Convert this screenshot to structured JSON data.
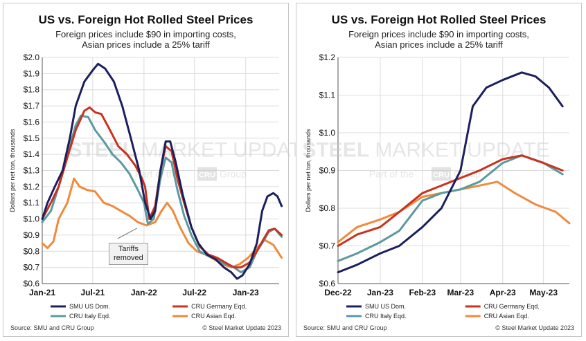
{
  "colors": {
    "smu": "#1b1f5e",
    "germany": "#c8321e",
    "italy": "#5a9aa0",
    "asia": "#f08a3c",
    "grid": "#dcdcdc"
  },
  "watermark": {
    "line1a": "STEEL",
    "line1b": "MARKET",
    "line1c": "UPDATE",
    "line2a": "Part of the",
    "logo": "CRU",
    "line2b": "Group"
  },
  "chart_data": [
    {
      "type": "line",
      "title": "US vs. Foreign Hot Rolled Steel Prices",
      "subtitle1": "Foreign prices include $90 in importing costs,",
      "subtitle2": "Asian prices include a 25% tariff",
      "ylabel": "Dollars per net ton, thousands",
      "ylim": [
        0.6,
        2.0
      ],
      "yticks": [
        "$0.6",
        "$0.7",
        "$0.8",
        "$0.9",
        "$1.0",
        "$1.1",
        "$1.2",
        "$1.3",
        "$1.4",
        "$1.5",
        "$1.6",
        "$1.7",
        "$1.8",
        "$1.9",
        "$2.0"
      ],
      "xlim": [
        "2021-01",
        "2023-05"
      ],
      "xticks": [
        {
          "label": "Jan-21",
          "x": "2021-01"
        },
        {
          "label": "Jul-21",
          "x": "2021-07"
        },
        {
          "label": "Jan-22",
          "x": "2022-01"
        },
        {
          "label": "Jul-22",
          "x": "2022-07"
        },
        {
          "label": "Jan-23",
          "x": "2023-01"
        }
      ],
      "grid": true,
      "legend_position": "bottom",
      "annotation": {
        "line1": "Tariffs",
        "line2": "removed",
        "x": "2022-01"
      },
      "source": "Source: SMU and CRU Group",
      "copyright": "© Steel Market Update 2023",
      "series": [
        {
          "name": "SMU US Dom.",
          "key": "smu",
          "points": [
            [
              "2021-01-01",
              1.0
            ],
            [
              "2021-01-20",
              1.1
            ],
            [
              "2021-02-15",
              1.2
            ],
            [
              "2021-03-15",
              1.3
            ],
            [
              "2021-04-10",
              1.5
            ],
            [
              "2021-05-01",
              1.7
            ],
            [
              "2021-06-01",
              1.85
            ],
            [
              "2021-07-01",
              1.92
            ],
            [
              "2021-07-20",
              1.96
            ],
            [
              "2021-08-15",
              1.93
            ],
            [
              "2021-09-15",
              1.85
            ],
            [
              "2021-10-15",
              1.7
            ],
            [
              "2021-11-15",
              1.5
            ],
            [
              "2021-12-15",
              1.3
            ],
            [
              "2022-01-05",
              1.1
            ],
            [
              "2022-01-25",
              1.0
            ],
            [
              "2022-02-10",
              1.05
            ],
            [
              "2022-03-01",
              1.3
            ],
            [
              "2022-03-20",
              1.48
            ],
            [
              "2022-04-05",
              1.48
            ],
            [
              "2022-04-25",
              1.35
            ],
            [
              "2022-05-20",
              1.15
            ],
            [
              "2022-06-20",
              0.95
            ],
            [
              "2022-07-15",
              0.85
            ],
            [
              "2022-08-15",
              0.78
            ],
            [
              "2022-09-15",
              0.75
            ],
            [
              "2022-10-15",
              0.7
            ],
            [
              "2022-11-10",
              0.67
            ],
            [
              "2022-12-01",
              0.63
            ],
            [
              "2022-12-20",
              0.65
            ],
            [
              "2023-01-15",
              0.72
            ],
            [
              "2023-02-10",
              0.85
            ],
            [
              "2023-03-01",
              1.05
            ],
            [
              "2023-03-20",
              1.14
            ],
            [
              "2023-04-10",
              1.16
            ],
            [
              "2023-04-25",
              1.14
            ],
            [
              "2023-05-10",
              1.08
            ]
          ]
        },
        {
          "name": "CRU Germany Eqd.",
          "key": "germany",
          "points": [
            [
              "2021-01-01",
              1.0
            ],
            [
              "2021-02-01",
              1.1
            ],
            [
              "2021-03-01",
              1.2
            ],
            [
              "2021-04-01",
              1.38
            ],
            [
              "2021-05-01",
              1.55
            ],
            [
              "2021-06-01",
              1.67
            ],
            [
              "2021-06-20",
              1.69
            ],
            [
              "2021-07-10",
              1.66
            ],
            [
              "2021-08-01",
              1.65
            ],
            [
              "2021-09-01",
              1.55
            ],
            [
              "2021-10-01",
              1.45
            ],
            [
              "2021-11-01",
              1.4
            ],
            [
              "2021-12-01",
              1.33
            ],
            [
              "2021-12-25",
              1.25
            ],
            [
              "2022-01-05",
              1.2
            ],
            [
              "2022-01-20",
              1.0
            ],
            [
              "2022-02-10",
              1.08
            ],
            [
              "2022-03-01",
              1.3
            ],
            [
              "2022-03-20",
              1.45
            ],
            [
              "2022-04-10",
              1.42
            ],
            [
              "2022-05-01",
              1.25
            ],
            [
              "2022-05-25",
              1.1
            ],
            [
              "2022-06-20",
              0.95
            ],
            [
              "2022-07-20",
              0.83
            ],
            [
              "2022-08-20",
              0.78
            ],
            [
              "2022-09-20",
              0.76
            ],
            [
              "2022-10-20",
              0.73
            ],
            [
              "2022-11-20",
              0.7
            ],
            [
              "2022-12-15",
              0.7
            ],
            [
              "2023-01-15",
              0.73
            ],
            [
              "2023-02-10",
              0.8
            ],
            [
              "2023-03-01",
              0.86
            ],
            [
              "2023-03-25",
              0.93
            ],
            [
              "2023-04-15",
              0.94
            ],
            [
              "2023-05-10",
              0.9
            ]
          ]
        },
        {
          "name": "CRU Italy Eqd.",
          "key": "italy",
          "points": [
            [
              "2021-01-01",
              0.98
            ],
            [
              "2021-02-01",
              1.05
            ],
            [
              "2021-03-01",
              1.2
            ],
            [
              "2021-04-01",
              1.4
            ],
            [
              "2021-05-01",
              1.58
            ],
            [
              "2021-05-20",
              1.64
            ],
            [
              "2021-06-15",
              1.63
            ],
            [
              "2021-07-10",
              1.55
            ],
            [
              "2021-08-10",
              1.48
            ],
            [
              "2021-09-10",
              1.4
            ],
            [
              "2021-10-10",
              1.35
            ],
            [
              "2021-11-10",
              1.28
            ],
            [
              "2021-12-10",
              1.18
            ],
            [
              "2022-01-01",
              1.1
            ],
            [
              "2022-01-15",
              0.97
            ],
            [
              "2022-02-05",
              1.0
            ],
            [
              "2022-03-01",
              1.25
            ],
            [
              "2022-03-20",
              1.38
            ],
            [
              "2022-04-10",
              1.35
            ],
            [
              "2022-05-01",
              1.18
            ],
            [
              "2022-05-25",
              1.02
            ],
            [
              "2022-06-20",
              0.9
            ],
            [
              "2022-07-20",
              0.8
            ],
            [
              "2022-08-20",
              0.77
            ],
            [
              "2022-09-20",
              0.75
            ],
            [
              "2022-10-20",
              0.72
            ],
            [
              "2022-11-20",
              0.7
            ],
            [
              "2022-12-15",
              0.67
            ],
            [
              "2023-01-15",
              0.7
            ],
            [
              "2023-02-10",
              0.8
            ],
            [
              "2023-03-01",
              0.85
            ],
            [
              "2023-03-25",
              0.92
            ],
            [
              "2023-04-15",
              0.94
            ],
            [
              "2023-05-10",
              0.89
            ]
          ]
        },
        {
          "name": "CRU Asian Eqd.",
          "key": "asia",
          "points": [
            [
              "2021-01-01",
              0.85
            ],
            [
              "2021-01-20",
              0.82
            ],
            [
              "2021-02-10",
              0.86
            ],
            [
              "2021-03-01",
              1.0
            ],
            [
              "2021-04-01",
              1.1
            ],
            [
              "2021-04-25",
              1.25
            ],
            [
              "2021-05-15",
              1.2
            ],
            [
              "2021-06-10",
              1.18
            ],
            [
              "2021-07-10",
              1.17
            ],
            [
              "2021-08-10",
              1.1
            ],
            [
              "2021-09-10",
              1.08
            ],
            [
              "2021-10-10",
              1.05
            ],
            [
              "2021-11-10",
              1.02
            ],
            [
              "2021-12-10",
              0.98
            ],
            [
              "2022-01-10",
              0.96
            ],
            [
              "2022-02-10",
              0.98
            ],
            [
              "2022-03-05",
              1.05
            ],
            [
              "2022-03-25",
              1.1
            ],
            [
              "2022-04-15",
              1.05
            ],
            [
              "2022-05-10",
              0.95
            ],
            [
              "2022-06-10",
              0.85
            ],
            [
              "2022-07-10",
              0.8
            ],
            [
              "2022-08-10",
              0.78
            ],
            [
              "2022-09-10",
              0.75
            ],
            [
              "2022-10-10",
              0.72
            ],
            [
              "2022-11-10",
              0.7
            ],
            [
              "2022-12-10",
              0.72
            ],
            [
              "2023-01-10",
              0.76
            ],
            [
              "2023-02-10",
              0.82
            ],
            [
              "2023-03-10",
              0.87
            ],
            [
              "2023-04-10",
              0.84
            ],
            [
              "2023-05-10",
              0.76
            ]
          ]
        }
      ]
    },
    {
      "type": "line",
      "title": "US vs. Foreign Hot Rolled Steel Prices",
      "subtitle1": "Foreign prices include $90 in importing costs,",
      "subtitle2": "Asian prices include a 25% tariff",
      "ylabel": "Dollars per net ton, thousands",
      "ylim": [
        0.6,
        1.2
      ],
      "yticks": [
        "$0.6",
        "$0.7",
        "$0.8",
        "$0.9",
        "$1.0",
        "$1.1",
        "$1.2"
      ],
      "xlim": [
        "2022-12-01",
        "2023-05-20"
      ],
      "xticks": [
        {
          "label": "Dec-22",
          "x": "2022-12-01"
        },
        {
          "label": "Jan-23",
          "x": "2023-01-01"
        },
        {
          "label": "Feb-23",
          "x": "2023-02-01"
        },
        {
          "label": "Mar-23",
          "x": "2023-03-01"
        },
        {
          "label": "Apr-23",
          "x": "2023-04-01"
        },
        {
          "label": "May-23",
          "x": "2023-05-01"
        }
      ],
      "grid": true,
      "legend_position": "bottom",
      "source": "Source: SMU and CRU Group",
      "copyright": "© Steel Market Update 2023",
      "series": [
        {
          "name": "SMU US Dom.",
          "key": "smu",
          "points": [
            [
              "2022-12-01",
              0.63
            ],
            [
              "2022-12-15",
              0.65
            ],
            [
              "2023-01-01",
              0.68
            ],
            [
              "2023-01-15",
              0.7
            ],
            [
              "2023-02-01",
              0.75
            ],
            [
              "2023-02-15",
              0.8
            ],
            [
              "2023-03-01",
              0.9
            ],
            [
              "2023-03-10",
              1.07
            ],
            [
              "2023-03-20",
              1.12
            ],
            [
              "2023-04-01",
              1.14
            ],
            [
              "2023-04-15",
              1.16
            ],
            [
              "2023-04-25",
              1.15
            ],
            [
              "2023-05-05",
              1.12
            ],
            [
              "2023-05-15",
              1.07
            ]
          ]
        },
        {
          "name": "CRU Germany Eqd.",
          "key": "germany",
          "points": [
            [
              "2022-12-01",
              0.7
            ],
            [
              "2022-12-15",
              0.73
            ],
            [
              "2023-01-01",
              0.75
            ],
            [
              "2023-01-15",
              0.79
            ],
            [
              "2023-02-01",
              0.84
            ],
            [
              "2023-02-15",
              0.86
            ],
            [
              "2023-03-01",
              0.88
            ],
            [
              "2023-03-15",
              0.9
            ],
            [
              "2023-04-01",
              0.93
            ],
            [
              "2023-04-15",
              0.94
            ],
            [
              "2023-05-01",
              0.92
            ],
            [
              "2023-05-15",
              0.9
            ]
          ]
        },
        {
          "name": "CRU Italy Eqd.",
          "key": "italy",
          "points": [
            [
              "2022-12-01",
              0.66
            ],
            [
              "2022-12-15",
              0.68
            ],
            [
              "2023-01-01",
              0.71
            ],
            [
              "2023-01-15",
              0.74
            ],
            [
              "2023-02-01",
              0.82
            ],
            [
              "2023-02-15",
              0.84
            ],
            [
              "2023-03-01",
              0.85
            ],
            [
              "2023-03-15",
              0.87
            ],
            [
              "2023-04-01",
              0.92
            ],
            [
              "2023-04-15",
              0.94
            ],
            [
              "2023-05-01",
              0.92
            ],
            [
              "2023-05-15",
              0.89
            ]
          ]
        },
        {
          "name": "CRU Asian Eqd.",
          "key": "asia",
          "points": [
            [
              "2022-12-01",
              0.71
            ],
            [
              "2022-12-15",
              0.75
            ],
            [
              "2023-01-01",
              0.77
            ],
            [
              "2023-01-15",
              0.79
            ],
            [
              "2023-02-01",
              0.83
            ],
            [
              "2023-02-15",
              0.84
            ],
            [
              "2023-03-01",
              0.85
            ],
            [
              "2023-03-15",
              0.86
            ],
            [
              "2023-03-28",
              0.87
            ],
            [
              "2023-04-10",
              0.84
            ],
            [
              "2023-04-25",
              0.81
            ],
            [
              "2023-05-10",
              0.79
            ],
            [
              "2023-05-20",
              0.76
            ]
          ]
        }
      ]
    }
  ]
}
